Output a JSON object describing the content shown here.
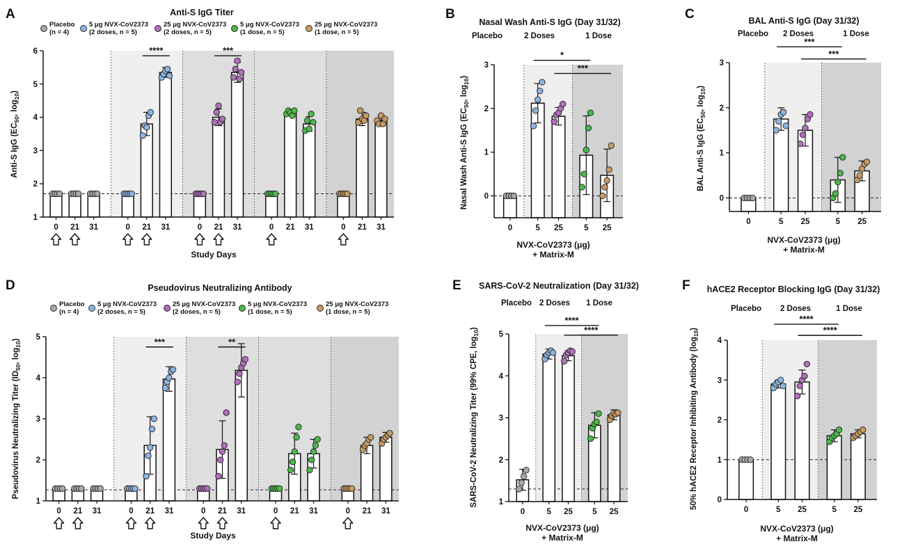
{
  "colors": {
    "placebo": "#a8a8a8",
    "d5x2": "#8db4e0",
    "d25x2": "#b06fbb",
    "d5x1": "#4cb84a",
    "d25x1": "#c79a64",
    "shade1": "#efefef",
    "shade2": "#dedede",
    "shade3": "#d2d2d2"
  },
  "chart_data": [
    {
      "id": "A",
      "panel_label": "A",
      "type": "bar",
      "title": "Anti-S IgG Titer",
      "ylabel": "Anti-S IgG (EC50, log10)",
      "xlabel": "Study Days",
      "ylim": [
        1,
        6
      ],
      "yticks": [
        "1",
        "2",
        "3",
        "4",
        "5",
        "6"
      ],
      "baseline": 1.7,
      "legend": [
        {
          "group": "placebo",
          "line1": "Placebo",
          "line2": "(n = 4)"
        },
        {
          "group": "d5x2",
          "line1": "5 μg NVX-CoV2373",
          "line2": "(2 doses, n = 5)"
        },
        {
          "group": "d25x2",
          "line1": "25 μg NVX-CoV2373",
          "line2": "(2 doses, n = 5)"
        },
        {
          "group": "d5x1",
          "line1": "5 μg NVX-CoV2373",
          "line2": "(1 dose, n = 5)"
        },
        {
          "group": "d25x1",
          "line1": "25 μg NVX-CoV2373",
          "line2": "(1 dose, n = 5)"
        }
      ],
      "categories": [
        "0",
        "21",
        "31",
        "0",
        "21",
        "31",
        "0",
        "21",
        "31",
        "0",
        "21",
        "31",
        "0",
        "21",
        "31"
      ],
      "bar_groups": [
        "placebo",
        "placebo",
        "placebo",
        "d5x2",
        "d5x2",
        "d5x2",
        "d25x2",
        "d25x2",
        "d25x2",
        "d5x1",
        "d5x1",
        "d5x1",
        "d25x1",
        "d25x1",
        "d25x1"
      ],
      "values": [
        1.7,
        1.7,
        1.7,
        1.7,
        3.8,
        5.35,
        1.7,
        4.0,
        5.35,
        1.7,
        4.15,
        3.8,
        1.7,
        3.95,
        3.9
      ],
      "errors": [
        0,
        0,
        0,
        0,
        0.35,
        0.15,
        0,
        0.25,
        0.3,
        0,
        0.08,
        0.22,
        0,
        0.2,
        0.15
      ],
      "points": [
        [
          1.7,
          1.7,
          1.7,
          1.7
        ],
        [
          1.7,
          1.7,
          1.7,
          1.7
        ],
        [
          1.7,
          1.7,
          1.7,
          1.7
        ],
        [
          1.7,
          1.7,
          1.7,
          1.7,
          1.7
        ],
        [
          3.45,
          3.75,
          3.7,
          4.05,
          4.15
        ],
        [
          5.2,
          5.3,
          5.4,
          5.45,
          5.25
        ],
        [
          1.7,
          1.7,
          1.7,
          1.7,
          1.7
        ],
        [
          3.85,
          4.15,
          4.35,
          3.85,
          3.95
        ],
        [
          5.2,
          5.45,
          5.7,
          5.15,
          5.35
        ],
        [
          1.7,
          1.7,
          1.7,
          1.7,
          1.7
        ],
        [
          4.1,
          4.2,
          4.15,
          4.05,
          4.2
        ],
        [
          3.6,
          3.9,
          3.65,
          4.1,
          3.85
        ],
        [
          1.7,
          1.7,
          1.7,
          1.7,
          1.7
        ],
        [
          3.85,
          4.2,
          3.95,
          3.9,
          4.05
        ],
        [
          3.9,
          3.8,
          4.05,
          3.8,
          3.95
        ]
      ],
      "arrows": [
        0,
        1,
        3,
        4,
        6,
        7,
        9,
        12
      ],
      "significance": [
        {
          "from": 4,
          "to": 5,
          "y": 5.85,
          "label": "****"
        },
        {
          "from": 7,
          "to": 8,
          "y": 5.85,
          "label": "***"
        }
      ]
    },
    {
      "id": "B",
      "panel_label": "B",
      "type": "bar",
      "title": "Nasal Wash Anti-S IgG (Day 31/32)",
      "ylabel": "Nasal Wash Anti-S IgG (EC50, log10)",
      "xlabel": "NVX-CoV2373 (μg)",
      "xlabel2": "+ Matrix-M",
      "group_labels": [
        "Placebo",
        "2 Doses",
        "1 Dose"
      ],
      "ylim": [
        -0.5,
        3
      ],
      "yticks": [
        "0",
        "1",
        "2",
        "3"
      ],
      "baseline": 0,
      "categories": [
        "0",
        "5",
        "25",
        "5",
        "25"
      ],
      "bar_groups": [
        "placebo",
        "d5x2",
        "d25x2",
        "d5x1",
        "d25x1"
      ],
      "values": [
        0,
        2.12,
        1.82,
        0.93,
        0.47
      ],
      "errors": [
        0,
        0.45,
        0.2,
        0.9,
        0.6
      ],
      "points": [
        [
          0,
          0,
          0,
          0
        ],
        [
          1.6,
          1.95,
          2.2,
          2.4,
          2.6
        ],
        [
          1.7,
          1.85,
          1.9,
          2.0,
          2.1
        ],
        [
          0.2,
          0.5,
          1.05,
          1.55,
          1.9
        ],
        [
          0,
          0.2,
          0.35,
          0.6,
          1.15
        ]
      ],
      "significance": [
        {
          "from": 1,
          "to": 3,
          "y": 3.1,
          "label": "*"
        },
        {
          "from": 2,
          "to": 4,
          "y": 2.8,
          "label": "***"
        }
      ]
    },
    {
      "id": "C",
      "panel_label": "C",
      "type": "bar",
      "title": "BAL Anti-S IgG (Day 31/32)",
      "ylabel": "BAL Anti-S IgG (EC50, log10)",
      "xlabel": "NVX-CoV2373 (μg)",
      "xlabel2": "+ Matrix-M",
      "group_labels": [
        "Placebo",
        "2 Doses",
        "1 Dose"
      ],
      "ylim": [
        -0.3,
        3
      ],
      "yticks": [
        "0",
        "1",
        "2",
        "3"
      ],
      "baseline": 0,
      "categories": [
        "0",
        "5",
        "25",
        "5",
        "25"
      ],
      "bar_groups": [
        "placebo",
        "d5x2",
        "d25x2",
        "d5x1",
        "d25x1"
      ],
      "values": [
        0,
        1.75,
        1.5,
        0.4,
        0.6
      ],
      "errors": [
        0,
        0.25,
        0.35,
        0.5,
        0.22
      ],
      "points": [
        [
          0,
          0,
          0,
          0
        ],
        [
          1.5,
          1.7,
          1.85,
          1.9,
          1.6
        ],
        [
          1.2,
          1.4,
          1.55,
          1.75,
          1.85
        ],
        [
          0,
          0.1,
          0.35,
          0.55,
          0.9
        ],
        [
          0.4,
          0.5,
          0.65,
          0.75,
          0.8
        ]
      ],
      "significance": [
        {
          "from": 1,
          "to": 3,
          "y": 3.35,
          "label": "***"
        },
        {
          "from": 2,
          "to": 4,
          "y": 3.08,
          "label": "***"
        }
      ]
    },
    {
      "id": "D",
      "panel_label": "D",
      "type": "bar",
      "title": "Pseudovirus Neutralizing Antibody",
      "ylabel": "Pseudovirus Neutralizing Titer (ID50, log10)",
      "xlabel": "Study  Days",
      "ylim": [
        1,
        5
      ],
      "yticks": [
        "1",
        "2",
        "3",
        "4",
        "5"
      ],
      "baseline": 1.27,
      "legend": [
        {
          "group": "placebo",
          "line1": "Placebo",
          "line2": "(n = 4)"
        },
        {
          "group": "d5x2",
          "line1": "5 μg NVX-CoV2373",
          "line2": "(2 doses, n = 5)"
        },
        {
          "group": "d25x2",
          "line1": "25 μg NVX-CoV2373",
          "line2": "(2 doses, n = 5)"
        },
        {
          "group": "d5x1",
          "line1": "5 μg NVX-CoV2373",
          "line2": "(1 dose, n = 5)"
        },
        {
          "group": "d25x1",
          "line1": "25 μg NVX-CoV2373",
          "line2": "(1 dose, n = 5)"
        }
      ],
      "categories": [
        "0",
        "21",
        "31",
        "0",
        "21",
        "31",
        "0",
        "21",
        "31",
        "0",
        "21",
        "31",
        "0",
        "21",
        "31"
      ],
      "bar_groups": [
        "placebo",
        "placebo",
        "placebo",
        "d5x2",
        "d5x2",
        "d5x2",
        "d25x2",
        "d25x2",
        "d25x2",
        "d5x1",
        "d5x1",
        "d5x1",
        "d25x1",
        "d25x1",
        "d25x1"
      ],
      "values": [
        1.3,
        1.3,
        1.3,
        1.3,
        2.35,
        3.97,
        1.3,
        2.25,
        4.18,
        1.3,
        2.15,
        2.15,
        1.3,
        2.35,
        2.55
      ],
      "errors": [
        0,
        0,
        0,
        0,
        0.7,
        0.3,
        0,
        0.7,
        0.65,
        0,
        0.5,
        0.35,
        0,
        0.2,
        0.12
      ],
      "points": [
        [
          1.3,
          1.3,
          1.3,
          1.3
        ],
        [
          1.3,
          1.3,
          1.3,
          1.3
        ],
        [
          1.3,
          1.3,
          1.3,
          1.3
        ],
        [
          1.3,
          1.3,
          1.3,
          1.3,
          1.3
        ],
        [
          1.6,
          2.1,
          2.3,
          2.75,
          3.0
        ],
        [
          3.75,
          3.9,
          4.0,
          4.15,
          4.2
        ],
        [
          1.3,
          1.3,
          1.3,
          1.3,
          1.3
        ],
        [
          1.6,
          2.0,
          2.2,
          2.35,
          3.15
        ],
        [
          3.9,
          4.1,
          4.25,
          4.35,
          4.45
        ],
        [
          1.3,
          1.3,
          1.3,
          1.3,
          1.3
        ],
        [
          1.75,
          1.95,
          2.2,
          2.55,
          2.8
        ],
        [
          1.75,
          2.0,
          2.2,
          2.35,
          2.5
        ],
        [
          1.3,
          1.3,
          1.3,
          1.3,
          1.3
        ],
        [
          2.25,
          2.35,
          2.4,
          2.5,
          2.55
        ],
        [
          2.4,
          2.5,
          2.55,
          2.6,
          2.65
        ]
      ],
      "arrows": [
        0,
        1,
        3,
        4,
        6,
        7,
        9,
        12
      ],
      "significance": [
        {
          "from": 4,
          "to": 5,
          "y": 4.75,
          "label": "***"
        },
        {
          "from": 7,
          "to": 8,
          "y": 4.75,
          "label": "**"
        }
      ]
    },
    {
      "id": "E",
      "panel_label": "E",
      "type": "bar",
      "title": "SARS-CoV-2 Neutralization (Day 31/32)",
      "ylabel": "SARS-CoV-2 Neutralizing Titer (99% CPE, log10)",
      "xlabel": "NVX-CoV2373 (μg)",
      "xlabel2": "+ Matrix-M",
      "group_labels": [
        "Placebo",
        "2 Doses",
        "1 Dose"
      ],
      "ylim": [
        1,
        5
      ],
      "yticks": [
        "1",
        "2",
        "3",
        "4",
        "5"
      ],
      "baseline": 1.3,
      "categories": [
        "0",
        "5",
        "25",
        "5",
        "25"
      ],
      "bar_groups": [
        "placebo",
        "d5x2",
        "d25x2",
        "d5x1",
        "d25x1"
      ],
      "values": [
        1.52,
        4.52,
        4.48,
        2.82,
        3.07
      ],
      "errors": [
        0.25,
        0.12,
        0.12,
        0.3,
        0.12
      ],
      "points": [
        [
          1.3,
          1.45,
          1.6,
          1.75
        ],
        [
          4.4,
          4.5,
          4.55,
          4.6,
          4.55
        ],
        [
          4.35,
          4.5,
          4.55,
          4.6,
          4.58
        ],
        [
          2.5,
          2.75,
          2.85,
          2.9,
          3.1
        ],
        [
          2.95,
          3.05,
          3.1,
          3.08,
          3.12
        ]
      ],
      "significance": [
        {
          "from": 1,
          "to": 3,
          "y": 5.2,
          "label": "****"
        },
        {
          "from": 2,
          "to": 4,
          "y": 4.97,
          "label": "****"
        }
      ]
    },
    {
      "id": "F",
      "panel_label": "F",
      "type": "bar",
      "title": "hACE2 Receptor Blocking IgG (Day 31/32)",
      "ylabel": "50% hACE2 Receptor Inhibiting Antibody (log10)",
      "xlabel": "NVX-CoV2373 (μg)",
      "xlabel2": "+ Matrix-M",
      "group_labels": [
        "Placebo",
        "2 Doses",
        "1 Dose"
      ],
      "ylim": [
        0,
        4
      ],
      "yticks": [
        "0",
        "1",
        "2",
        "3",
        "4"
      ],
      "baseline": 1,
      "categories": [
        "0",
        "5",
        "25",
        "5",
        "25"
      ],
      "bar_groups": [
        "placebo",
        "d5x2",
        "d25x2",
        "d5x1",
        "d25x1"
      ],
      "values": [
        1.0,
        2.9,
        2.95,
        1.6,
        1.65
      ],
      "errors": [
        0.02,
        0.1,
        0.3,
        0.15,
        0.1
      ],
      "points": [
        [
          1,
          1,
          1,
          1
        ],
        [
          2.8,
          2.9,
          2.95,
          3.0,
          2.85
        ],
        [
          2.6,
          2.85,
          3.0,
          3.1,
          3.4
        ],
        [
          1.45,
          1.55,
          1.6,
          1.65,
          1.75
        ],
        [
          1.55,
          1.6,
          1.65,
          1.7,
          1.75
        ]
      ],
      "significance": [
        {
          "from": 1,
          "to": 3,
          "y": 4.4,
          "label": "****"
        },
        {
          "from": 2,
          "to": 4,
          "y": 4.12,
          "label": "****"
        }
      ]
    }
  ]
}
